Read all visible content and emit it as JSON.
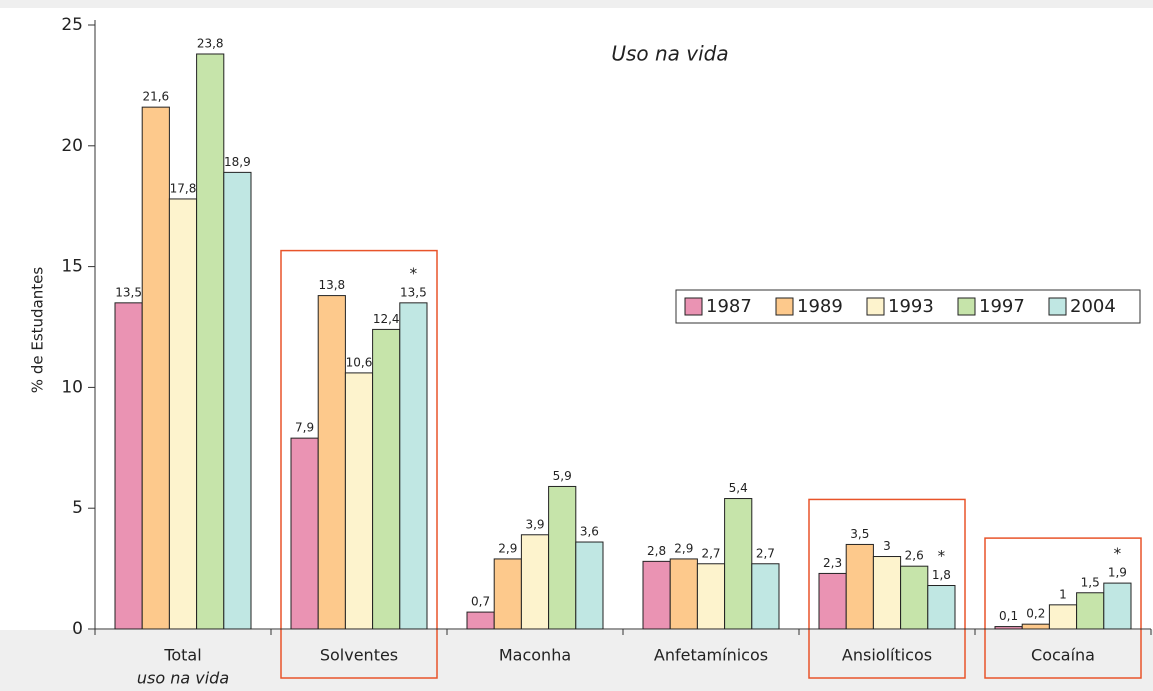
{
  "chart_data": {
    "type": "bar",
    "title": "Uso na vida",
    "y_label": "% de Estudantes",
    "categories": [
      "Total",
      "Solventes",
      "Maconha",
      "Anfetamínicos",
      "Ansiolíticos",
      "Cocaína"
    ],
    "category_notes": [
      "uso na vida",
      null,
      null,
      null,
      null,
      null
    ],
    "highlight": [
      false,
      true,
      false,
      false,
      true,
      true
    ],
    "series": [
      {
        "name": "1987",
        "color": "#ea93b3",
        "values": [
          13.5,
          7.9,
          0.7,
          2.8,
          2.3,
          0.1
        ],
        "value_labels": [
          "13,5",
          "7,9",
          "0,7",
          "2,8",
          "2,3",
          "0,1"
        ]
      },
      {
        "name": "1989",
        "color": "#fdc98c",
        "values": [
          21.6,
          13.8,
          2.9,
          2.9,
          3.5,
          0.2
        ],
        "value_labels": [
          "21,6",
          "13,8",
          "2,9",
          "2,9",
          "3,5",
          "0,2"
        ]
      },
      {
        "name": "1993",
        "color": "#fdf3cd",
        "values": [
          17.8,
          10.6,
          3.9,
          2.7,
          3,
          1
        ],
        "value_labels": [
          "17,8",
          "10,6",
          "3,9",
          "2,7",
          "3",
          "1"
        ]
      },
      {
        "name": "1997",
        "color": "#c6e4aa",
        "values": [
          23.8,
          12.4,
          5.9,
          5.4,
          2.6,
          1.5
        ],
        "value_labels": [
          "23,8",
          "12,4",
          "5,9",
          "5,4",
          "2,6",
          "1,5"
        ]
      },
      {
        "name": "2004",
        "color": "#c0e7e3",
        "values": [
          18.9,
          13.5,
          3.6,
          2.7,
          1.8,
          1.9
        ],
        "value_labels": [
          "18,9",
          "13,5",
          "3,6",
          "2,7",
          "1,8",
          "1,9"
        ],
        "notes": [
          null,
          "*",
          null,
          null,
          "*",
          "*"
        ]
      }
    ],
    "ylim": [
      0,
      25
    ],
    "yticks": [
      0,
      5,
      10,
      15,
      20,
      25
    ],
    "legend": "right"
  }
}
